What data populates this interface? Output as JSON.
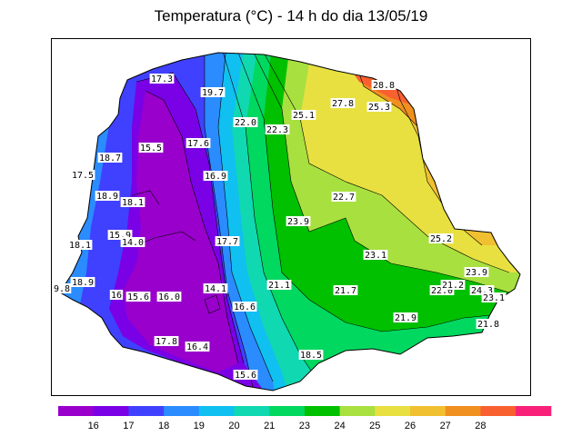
{
  "title": "Temperatura (°C) - 14 h do dia 13/05/19",
  "legend": {
    "colors": [
      "#9900cc",
      "#7a00e6",
      "#4040ff",
      "#2a8cff",
      "#10c0f0",
      "#10d8b0",
      "#00d860",
      "#00c000",
      "#a8e040",
      "#e8e040",
      "#f0c030",
      "#f09020",
      "#f86030",
      "#f82078"
    ],
    "ticks": [
      "16",
      "17",
      "18",
      "19",
      "20",
      "21",
      "23",
      "24",
      "25",
      "26",
      "27",
      "28"
    ]
  },
  "labels": [
    {
      "text": "17.3"
    },
    {
      "text": "19.7"
    },
    {
      "text": "22.0"
    },
    {
      "text": "22.3"
    },
    {
      "text": "25.1"
    },
    {
      "text": "27.8"
    },
    {
      "text": "28.8"
    },
    {
      "text": "25.3"
    },
    {
      "text": "15.5"
    },
    {
      "text": "17.6"
    },
    {
      "text": "18.7"
    },
    {
      "text": "17.5"
    },
    {
      "text": "16.9"
    },
    {
      "text": "18.9"
    },
    {
      "text": "18.1"
    },
    {
      "text": "22.7"
    },
    {
      "text": "23.9"
    },
    {
      "text": "15.9"
    },
    {
      "text": "14.0"
    },
    {
      "text": "17.7"
    },
    {
      "text": "18.1"
    },
    {
      "text": "25.2"
    },
    {
      "text": "23.1"
    },
    {
      "text": "23.9"
    },
    {
      "text": "18.9"
    },
    {
      "text": "21.1"
    },
    {
      "text": "21.7"
    },
    {
      "text": "22.0"
    },
    {
      "text": "21.2"
    },
    {
      "text": "24.3"
    },
    {
      "text": "9.8"
    },
    {
      "text": "16"
    },
    {
      "text": "15.6"
    },
    {
      "text": "16.0"
    },
    {
      "text": "14.1"
    },
    {
      "text": "23.1"
    },
    {
      "text": "16.6"
    },
    {
      "text": "21.9"
    },
    {
      "text": "21.8"
    },
    {
      "text": "17.8"
    },
    {
      "text": "16.4"
    },
    {
      "text": "18.5"
    },
    {
      "text": "15.6"
    }
  ]
}
